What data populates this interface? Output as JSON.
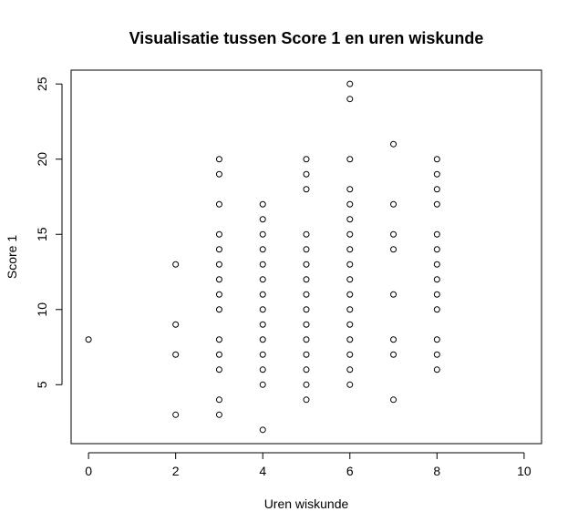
{
  "chart_data": {
    "type": "scatter",
    "title": "Visualisatie tussen Score 1 en uren wiskunde",
    "xlabel": "Uren wiskunde",
    "ylabel": "Score 1",
    "xlim": [
      -0.4,
      10.4
    ],
    "ylim": [
      1.08,
      25.92
    ],
    "xticks": [
      "0",
      "2",
      "4",
      "6",
      "8",
      "10"
    ],
    "yticks": [
      "5",
      "10",
      "15",
      "20",
      "25"
    ],
    "grid": false,
    "legend": "none",
    "marker": "open-circle",
    "points": [
      [
        0,
        8
      ],
      [
        2,
        3
      ],
      [
        2,
        7
      ],
      [
        2,
        9
      ],
      [
        2,
        13
      ],
      [
        3,
        3
      ],
      [
        3,
        4
      ],
      [
        3,
        6
      ],
      [
        3,
        7
      ],
      [
        3,
        8
      ],
      [
        3,
        10
      ],
      [
        3,
        11
      ],
      [
        3,
        12
      ],
      [
        3,
        13
      ],
      [
        3,
        14
      ],
      [
        3,
        15
      ],
      [
        3,
        17
      ],
      [
        3,
        19
      ],
      [
        3,
        20
      ],
      [
        4,
        2
      ],
      [
        4,
        5
      ],
      [
        4,
        6
      ],
      [
        4,
        7
      ],
      [
        4,
        8
      ],
      [
        4,
        9
      ],
      [
        4,
        10
      ],
      [
        4,
        11
      ],
      [
        4,
        12
      ],
      [
        4,
        13
      ],
      [
        4,
        14
      ],
      [
        4,
        15
      ],
      [
        4,
        16
      ],
      [
        4,
        17
      ],
      [
        5,
        4
      ],
      [
        5,
        5
      ],
      [
        5,
        6
      ],
      [
        5,
        7
      ],
      [
        5,
        8
      ],
      [
        5,
        9
      ],
      [
        5,
        10
      ],
      [
        5,
        11
      ],
      [
        5,
        12
      ],
      [
        5,
        13
      ],
      [
        5,
        14
      ],
      [
        5,
        15
      ],
      [
        5,
        18
      ],
      [
        5,
        19
      ],
      [
        5,
        20
      ],
      [
        6,
        5
      ],
      [
        6,
        6
      ],
      [
        6,
        7
      ],
      [
        6,
        8
      ],
      [
        6,
        9
      ],
      [
        6,
        10
      ],
      [
        6,
        11
      ],
      [
        6,
        12
      ],
      [
        6,
        13
      ],
      [
        6,
        14
      ],
      [
        6,
        15
      ],
      [
        6,
        16
      ],
      [
        6,
        17
      ],
      [
        6,
        18
      ],
      [
        6,
        20
      ],
      [
        6,
        24
      ],
      [
        6,
        25
      ],
      [
        7,
        4
      ],
      [
        7,
        7
      ],
      [
        7,
        8
      ],
      [
        7,
        11
      ],
      [
        7,
        14
      ],
      [
        7,
        15
      ],
      [
        7,
        17
      ],
      [
        7,
        21
      ],
      [
        8,
        6
      ],
      [
        8,
        7
      ],
      [
        8,
        8
      ],
      [
        8,
        10
      ],
      [
        8,
        11
      ],
      [
        8,
        12
      ],
      [
        8,
        13
      ],
      [
        8,
        14
      ],
      [
        8,
        15
      ],
      [
        8,
        17
      ],
      [
        8,
        18
      ],
      [
        8,
        19
      ],
      [
        8,
        20
      ]
    ]
  }
}
